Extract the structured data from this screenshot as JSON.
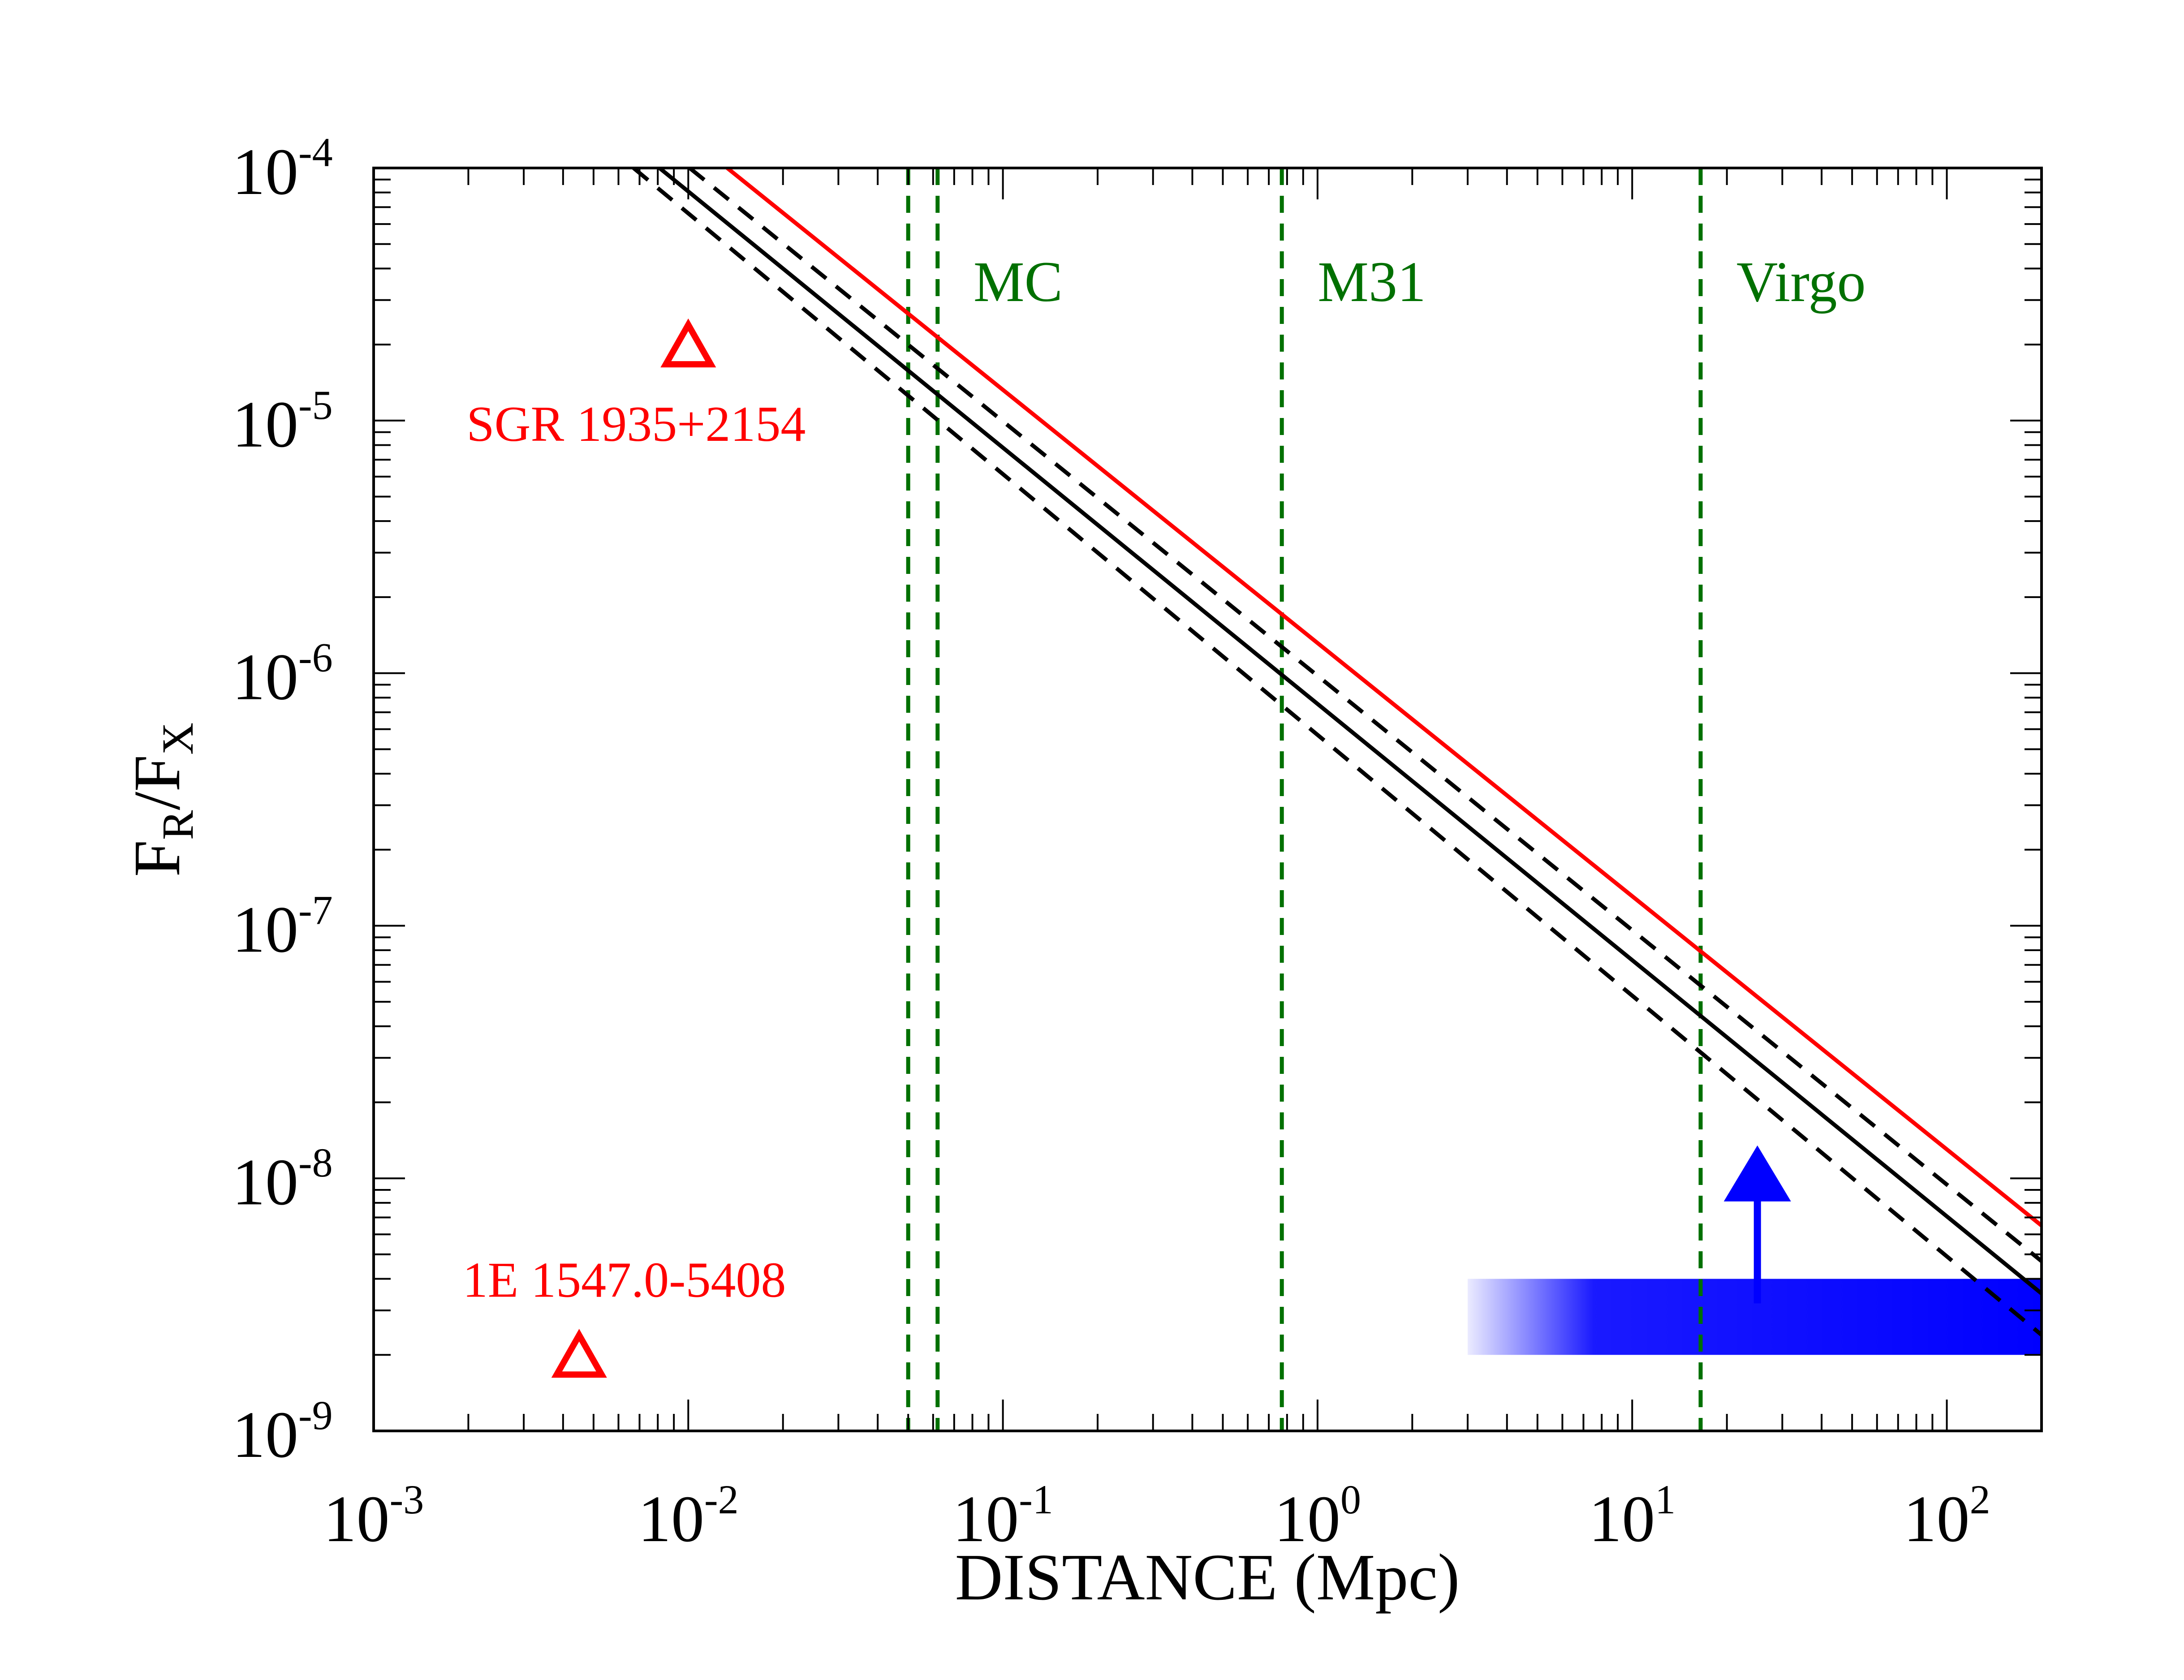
{
  "chart_data": {
    "type": "line",
    "xscale": "log",
    "yscale": "log",
    "xlim": [
      0.001,
      200
    ],
    "ylim": [
      1e-09,
      0.0001
    ],
    "xlabel": "DISTANCE (Mpc)",
    "ylabel": {
      "base": "F",
      "num_sub": "R",
      "slash": "/",
      "den_base": "F",
      "den_sub": "X"
    },
    "x_ticks": [
      {
        "value": 0.001,
        "base": "10",
        "exp": "-3"
      },
      {
        "value": 0.01,
        "base": "10",
        "exp": "-2"
      },
      {
        "value": 0.1,
        "base": "10",
        "exp": "-1"
      },
      {
        "value": 1,
        "base": "10",
        "exp": "0"
      },
      {
        "value": 10,
        "base": "10",
        "exp": "1"
      },
      {
        "value": 100,
        "base": "10",
        "exp": "2"
      }
    ],
    "y_ticks": [
      {
        "value": 1e-09,
        "base": "10",
        "exp": "-9"
      },
      {
        "value": 1e-08,
        "base": "10",
        "exp": "-8"
      },
      {
        "value": 1e-07,
        "base": "10",
        "exp": "-7"
      },
      {
        "value": 1e-06,
        "base": "10",
        "exp": "-6"
      },
      {
        "value": 1e-05,
        "base": "10",
        "exp": "-5"
      },
      {
        "value": 0.0001,
        "base": "10",
        "exp": "-4"
      }
    ],
    "series": [
      {
        "name": "red-limit",
        "color": "#ff0000",
        "dash": "solid",
        "x": [
          0.0133,
          200
        ],
        "y": [
          0.0001,
          6.5e-09
        ]
      },
      {
        "name": "upper-dashed",
        "color": "#000000",
        "dash": "dashed",
        "x": [
          0.0101,
          200
        ],
        "y": [
          0.0001,
          4.7e-09
        ]
      },
      {
        "name": "central",
        "color": "#000000",
        "dash": "solid",
        "x": [
          0.0081,
          200
        ],
        "y": [
          0.0001,
          3.5e-09
        ]
      },
      {
        "name": "lower-dashed",
        "color": "#000000",
        "dash": "dashed",
        "x": [
          0.0067,
          200
        ],
        "y": [
          0.0001,
          2.4e-09
        ]
      }
    ],
    "reference_lines": [
      {
        "x": 0.05,
        "label": "",
        "color": "#007000"
      },
      {
        "x": 0.062,
        "label": "MC",
        "color": "#007000"
      },
      {
        "x": 0.77,
        "label": "M31",
        "color": "#007000"
      },
      {
        "x": 16.5,
        "label": "Virgo",
        "color": "#007000"
      }
    ],
    "points": [
      {
        "name": "SGR 1935+2154",
        "x": 0.01,
        "y": 2e-05,
        "marker": "open-triangle",
        "color": "#ff0000"
      },
      {
        "name": "1E 1547.0-5408",
        "x": 0.0045,
        "y": 2e-09,
        "marker": "open-triangle",
        "color": "#ff0000"
      }
    ],
    "band": {
      "x": [
        3,
        200
      ],
      "y": [
        2e-09,
        4e-09
      ],
      "color": "#0000ff",
      "fade": "left"
    },
    "arrow": {
      "x": 25,
      "y_start": 3.2e-09,
      "y_end": 1.35e-08,
      "direction": "up",
      "color": "#0000ff"
    }
  }
}
